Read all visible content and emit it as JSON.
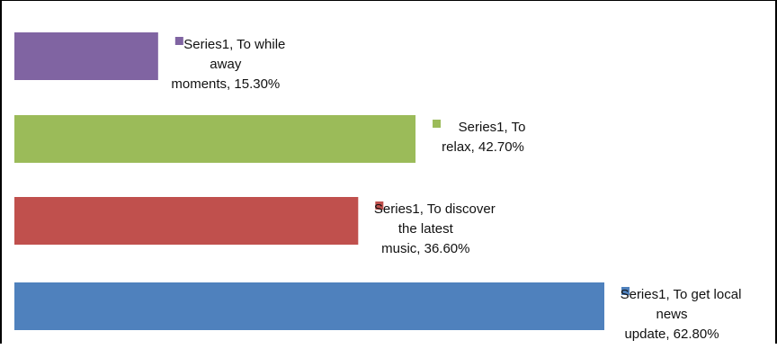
{
  "chart_data": {
    "type": "bar",
    "orientation": "horizontal",
    "categories": [
      "To get local news update",
      "To discover the latest music",
      "To relax",
      "To while away moments"
    ],
    "series": [
      {
        "values": [
          62.8,
          36.6,
          42.7,
          15.3
        ],
        "colors": [
          "#4f81bd",
          "#c0504d",
          "#9bbb59",
          "#8064a2"
        ],
        "data_labels": [
          [
            "Series1, To get local",
            "news",
            "update, 62.80%"
          ],
          [
            "Series1, To discover",
            "the latest",
            "music, 36.60%"
          ],
          [
            "Series1, To",
            "relax, 42.70%"
          ],
          [
            "Series1, To while",
            "away",
            "moments, 15.30%"
          ]
        ]
      }
    ],
    "legend_key_markers": "square, in bar color, before first label line",
    "grid": false,
    "axes_visible": false
  }
}
